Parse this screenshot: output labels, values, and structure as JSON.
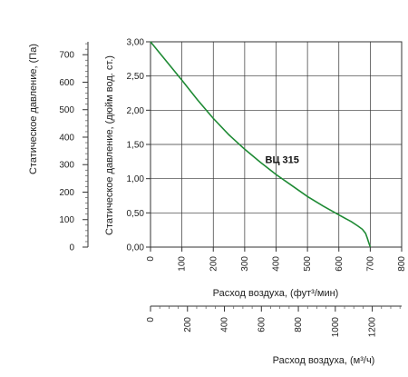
{
  "chart_data": {
    "type": "line",
    "axes": {
      "x_cfm": {
        "label": "Расход воздуха, (фут³/мин)",
        "ticks": [
          "0",
          "100",
          "200",
          "300",
          "400",
          "500",
          "600",
          "700",
          "800"
        ],
        "range": [
          0,
          800
        ]
      },
      "x_m3h": {
        "label": "Расход воздуха, (м³/ч)",
        "ticks": [
          "0",
          "200",
          "400",
          "600",
          "800",
          "1000",
          "1200"
        ],
        "range": [
          0,
          1359
        ]
      },
      "y_inwg": {
        "label": "Статическое давление, (дюйм вод. ст.)",
        "ticks": [
          "0,00",
          "0,50",
          "1,00",
          "1,50",
          "2,00",
          "2,50",
          "3,00"
        ],
        "range": [
          0,
          3
        ]
      },
      "y_pa": {
        "label": "Статическое давление, (Па)",
        "ticks": [
          "0",
          "100",
          "200",
          "300",
          "400",
          "500",
          "600",
          "700"
        ],
        "range": [
          0,
          747
        ]
      }
    },
    "grid": true,
    "series": [
      {
        "name": "ВЦ 315",
        "color": "#1e8a34",
        "x": [
          0,
          50,
          100,
          150,
          200,
          250,
          300,
          350,
          400,
          450,
          500,
          550,
          600,
          640,
          660,
          675,
          685,
          690,
          695,
          700
        ],
        "y": [
          3.0,
          2.72,
          2.44,
          2.15,
          1.88,
          1.64,
          1.43,
          1.24,
          1.06,
          0.9,
          0.74,
          0.6,
          0.47,
          0.37,
          0.31,
          0.26,
          0.2,
          0.14,
          0.07,
          0.0
        ]
      }
    ],
    "annotations": [
      {
        "text": "ВЦ 315",
        "x": 400,
        "y": 1.23
      }
    ]
  }
}
